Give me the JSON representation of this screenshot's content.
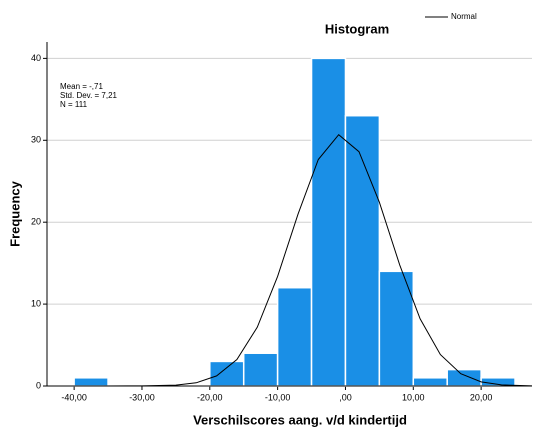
{
  "chart_data": {
    "type": "histogram",
    "title": "Histogram",
    "xlabel": "Verschilscores aang. v/d kindertijd",
    "ylabel": "Frequency",
    "annotations": [
      "Mean = -,71",
      "Std. Dev. = 7,21",
      "N = 111"
    ],
    "bins": [
      -40,
      -35,
      -30,
      -25,
      -20,
      -15,
      -10,
      -5,
      0,
      5,
      10,
      15,
      20,
      25
    ],
    "counts": [
      1,
      0,
      0,
      0,
      3,
      4,
      12,
      40,
      33,
      14,
      1,
      2,
      1
    ],
    "color": "#1a8fe6",
    "curve": {
      "name": "Normal",
      "color": "#000000",
      "x": [
        -44,
        -36,
        -30,
        -25,
        -22,
        -19,
        -16,
        -13,
        -10,
        -7,
        -4,
        -1,
        2,
        5,
        8,
        11,
        14,
        17,
        20,
        23,
        27.5
      ],
      "values": [
        0,
        0,
        0.01,
        0.11,
        0.39,
        1.23,
        3.24,
        7.18,
        13.38,
        20.98,
        27.66,
        30.68,
        28.61,
        22.43,
        14.79,
        8.21,
        3.83,
        1.5,
        0.5,
        0.14,
        0.01
      ]
    },
    "xlim": [
      -44,
      27.5
    ],
    "ylim": [
      0,
      42
    ],
    "xticks": [
      {
        "value": -40,
        "label": "-40,00"
      },
      {
        "value": -30,
        "label": "-30,00"
      },
      {
        "value": -20,
        "label": "-20,00"
      },
      {
        "value": -10,
        "label": "-10,00"
      },
      {
        "value": 0,
        "label": ",00"
      },
      {
        "value": 10,
        "label": "10,00"
      },
      {
        "value": 20,
        "label": "20,00"
      }
    ],
    "yticks": [
      0,
      10,
      20,
      30,
      40
    ],
    "grid": true
  }
}
